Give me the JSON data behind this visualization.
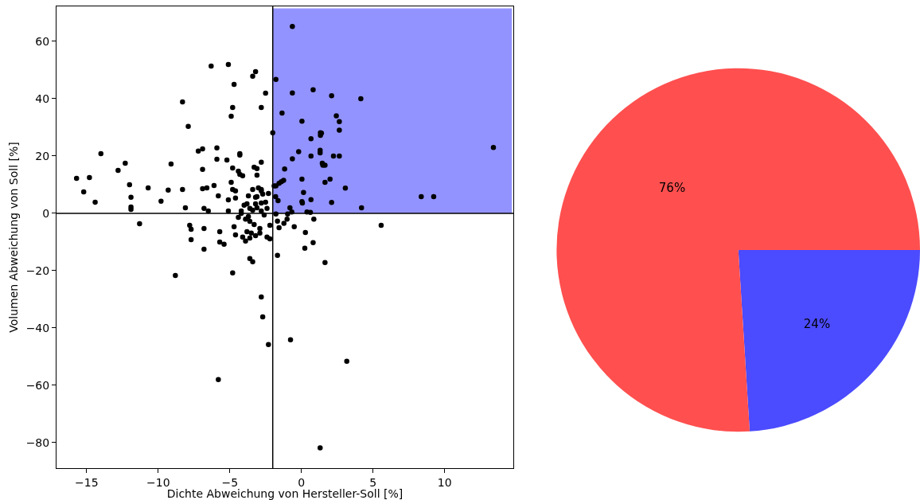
{
  "chart_data": [
    {
      "type": "scatter",
      "xlabel": "Dichte Abweichung von Hersteller-Soll [%]",
      "ylabel": "Volumen Abweichung von Soll [%]",
      "xlim": [
        -17.1,
        14.8
      ],
      "ylim": [
        -88.9,
        72.2
      ],
      "xticks": [
        -15,
        -10,
        -5,
        0,
        5,
        10
      ],
      "yticks": [
        -80,
        -60,
        -40,
        -20,
        0,
        20,
        40,
        60
      ],
      "grid": false,
      "ref_lines": [
        {
          "axis": "x",
          "value": -2,
          "color": "#000000",
          "line_style": "solid"
        },
        {
          "axis": "y",
          "value": 0,
          "color": "#000000",
          "line_style": "solid"
        }
      ],
      "series": [
        {
          "color": "#000000",
          "marker": "circle",
          "x": [
            -15.7,
            -15.2,
            -14.8,
            -14.4,
            -14.0,
            -12.8,
            -12.3,
            -12.0,
            -11.9,
            -11.9,
            -11.9,
            -11.3,
            -10.7,
            -9.8,
            -9.3,
            -9.1,
            -8.8,
            -8.3,
            -8.3,
            -8.1,
            -7.9,
            -7.8,
            -7.7,
            -7.7,
            -7.2,
            -6.9,
            -6.9,
            -6.9,
            -6.8,
            -6.8,
            -6.8,
            -6.6,
            -6.5,
            -6.3,
            -6.1,
            -5.9,
            -5.9,
            -5.8,
            -5.7,
            -5.7,
            -5.8,
            -5.4,
            -5.2,
            -5.1,
            -5.1,
            -5.1,
            -4.9,
            -4.9,
            -4.8,
            -4.8,
            -4.8,
            -4.7,
            -4.8,
            -4.6,
            -4.6,
            -4.7,
            -4.6,
            -4.4,
            -4.4,
            -4.3,
            -4.3,
            -4.3,
            -4.2,
            -4.2,
            -4.1,
            -4.1,
            -4.0,
            -3.9,
            -3.8,
            -3.9,
            -3.8,
            -3.7,
            -3.7,
            -3.6,
            -3.6,
            -3.6,
            -3.6,
            -3.5,
            -3.4,
            -3.4,
            -3.4,
            -3.4,
            -3.3,
            -3.3,
            -3.2,
            -3.2,
            -3.2,
            -3.2,
            -3.1,
            -3.1,
            -3.1,
            -3.1,
            -3.0,
            -2.9,
            -2.9,
            -2.8,
            -2.8,
            -2.8,
            -2.8,
            -2.8,
            -2.8,
            -2.8,
            -2.7,
            -2.6,
            -2.7,
            -2.5,
            -2.5,
            -2.4,
            -2.4,
            -2.3,
            -2.3,
            -2.2,
            -2.2,
            -2.0,
            -0.63,
            -1.78,
            -0.63,
            0.82,
            2.11,
            4.15,
            -1.35,
            0.04,
            2.44,
            2.65,
            2.65,
            1.33,
            1.4,
            1.33,
            0.67,
            -0.19,
            1.31,
            1.31,
            -0.63,
            0.67,
            2.24,
            2.65,
            13.41,
            -1.17,
            1.46,
            1.5,
            1.65,
            0.04,
            2.0,
            1.65,
            -1.24,
            -1.4,
            -1.56,
            -1.78,
            -1.9,
            3.07,
            0.15,
            -1.8,
            -1.63,
            0.04,
            0.07,
            0.67,
            2.11,
            8.37,
            9.24,
            4.2,
            -0.8,
            -0.67,
            0.39,
            0.63,
            -1.78,
            -0.96,
            -1.67,
            -1.0,
            -1.22,
            -1.56,
            -0.5,
            0.87,
            0.28,
            0.82,
            0.24,
            -1.67,
            1.65,
            5.57,
            -0.76,
            3.17,
            1.31
          ],
          "values": [
            12.2,
            7.5,
            12.5,
            3.9,
            20.8,
            15,
            17.5,
            10,
            5.6,
            1.4,
            2.2,
            -3.6,
            8.9,
            4.2,
            8.1,
            17.2,
            -21.7,
            38.9,
            8.3,
            1.9,
            30.3,
            -4.2,
            -5.6,
            -9.2,
            21.7,
            22.5,
            15.3,
            8.6,
            1.7,
            -5.3,
            -12.5,
            8.9,
            0.8,
            51.4,
            9.7,
            22.8,
            18.9,
            6.1,
            -6.4,
            -10,
            -58,
            -10.8,
            18.6,
            4.7,
            0.8,
            51.9,
            10.8,
            33.9,
            36.9,
            15.8,
            -20.8,
            45,
            8.3,
            7.8,
            5.3,
            -4.7,
            -7.5,
            -1.4,
            14.7,
            13.6,
            20.8,
            20.3,
            0,
            0.8,
            13.1,
            -8.3,
            2.8,
            -9.7,
            -6.4,
            -2,
            3.3,
            -1.1,
            6.1,
            -8.6,
            -15.8,
            1.7,
            -2.8,
            -6.9,
            47.8,
            8.3,
            1.1,
            -16.9,
            -3.9,
            16.1,
            49.4,
            3.3,
            5.6,
            -7.8,
            15.6,
            1.9,
            13.3,
            5.8,
            8.9,
            -5.3,
            -6.9,
            8.3,
            3.6,
            17.8,
            -29.2,
            36.9,
            7.8,
            0.8,
            6.7,
            -0.6,
            -36.1,
            41.9,
            3.9,
            -8.3,
            1.7,
            6.9,
            -45.8,
            -8.9,
            -4.2,
            28.1,
            65.2,
            46.7,
            42.0,
            43.1,
            41.0,
            40.0,
            35.0,
            32.1,
            34.0,
            32.0,
            29.0,
            28.1,
            28.0,
            27.2,
            26.0,
            21.5,
            22.0,
            21.1,
            19.0,
            20.0,
            20.0,
            20.0,
            23.0,
            15.5,
            17.5,
            16.8,
            16.8,
            11.9,
            11.9,
            10.8,
            11.5,
            11.0,
            10.5,
            9.6,
            9.6,
            8.8,
            7.3,
            5.8,
            4.4,
            4.1,
            3.6,
            4.8,
            3.8,
            5.8,
            5.8,
            1.9,
            1.9,
            0.5,
            0.5,
            0.3,
            -0.2,
            -0.2,
            -2.7,
            -2.0,
            -3.5,
            -5.0,
            -4.7,
            -2.0,
            -6.7,
            -10.2,
            -12.2,
            -14.7,
            -17.2,
            -4.2,
            -44.1,
            -51.6,
            -81.8
          ]
        },
        {
          "type": "area",
          "color": "#4b4bff",
          "x": [
            -2,
            14.7
          ],
          "values": [
            71.5,
            71.5
          ]
        }
      ]
    },
    {
      "type": "pie",
      "categories": [
        null,
        null
      ],
      "values": [
        76,
        24
      ],
      "colors": [
        "#ff4f4f",
        "#4b4bff"
      ],
      "value_labels": [
        "76%",
        "24%"
      ]
    }
  ]
}
